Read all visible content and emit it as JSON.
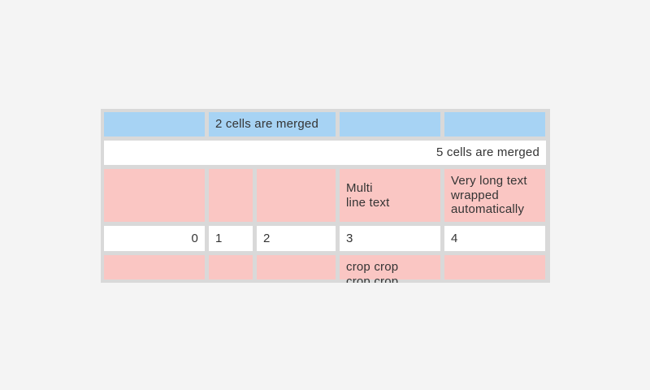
{
  "palette": {
    "page_background": "#f4f4f4",
    "table_frame_gray": "#d9d9d9",
    "header_cell_blue": "#a7d3f4",
    "highlight_cell_pink": "#fac6c3",
    "plain_cell_white": "#ffffff",
    "text_color": "#343434"
  },
  "table": {
    "rows": [
      {
        "cells": [
          {
            "text": ""
          },
          {
            "text": "2 cells are merged",
            "span": 2
          },
          {
            "text": ""
          },
          {
            "text": ""
          }
        ]
      },
      {
        "cells": [
          {
            "text": "5 cells are merged",
            "span": 5,
            "align": "right"
          }
        ]
      },
      {
        "cells": [
          {
            "text": ""
          },
          {
            "text": ""
          },
          {
            "text": ""
          },
          {
            "text": "Multi\nline text"
          },
          {
            "text": "Very long text\nwrapped\nautomatically"
          }
        ]
      },
      {
        "cells": [
          {
            "text": "0",
            "align": "right"
          },
          {
            "text": "1"
          },
          {
            "text": "2"
          },
          {
            "text": "3"
          },
          {
            "text": "4"
          }
        ]
      },
      {
        "cells": [
          {
            "text": ""
          },
          {
            "text": ""
          },
          {
            "text": ""
          },
          {
            "text": "crop crop\ncrop crop",
            "clipped": true
          },
          {
            "text": ""
          }
        ]
      }
    ]
  }
}
